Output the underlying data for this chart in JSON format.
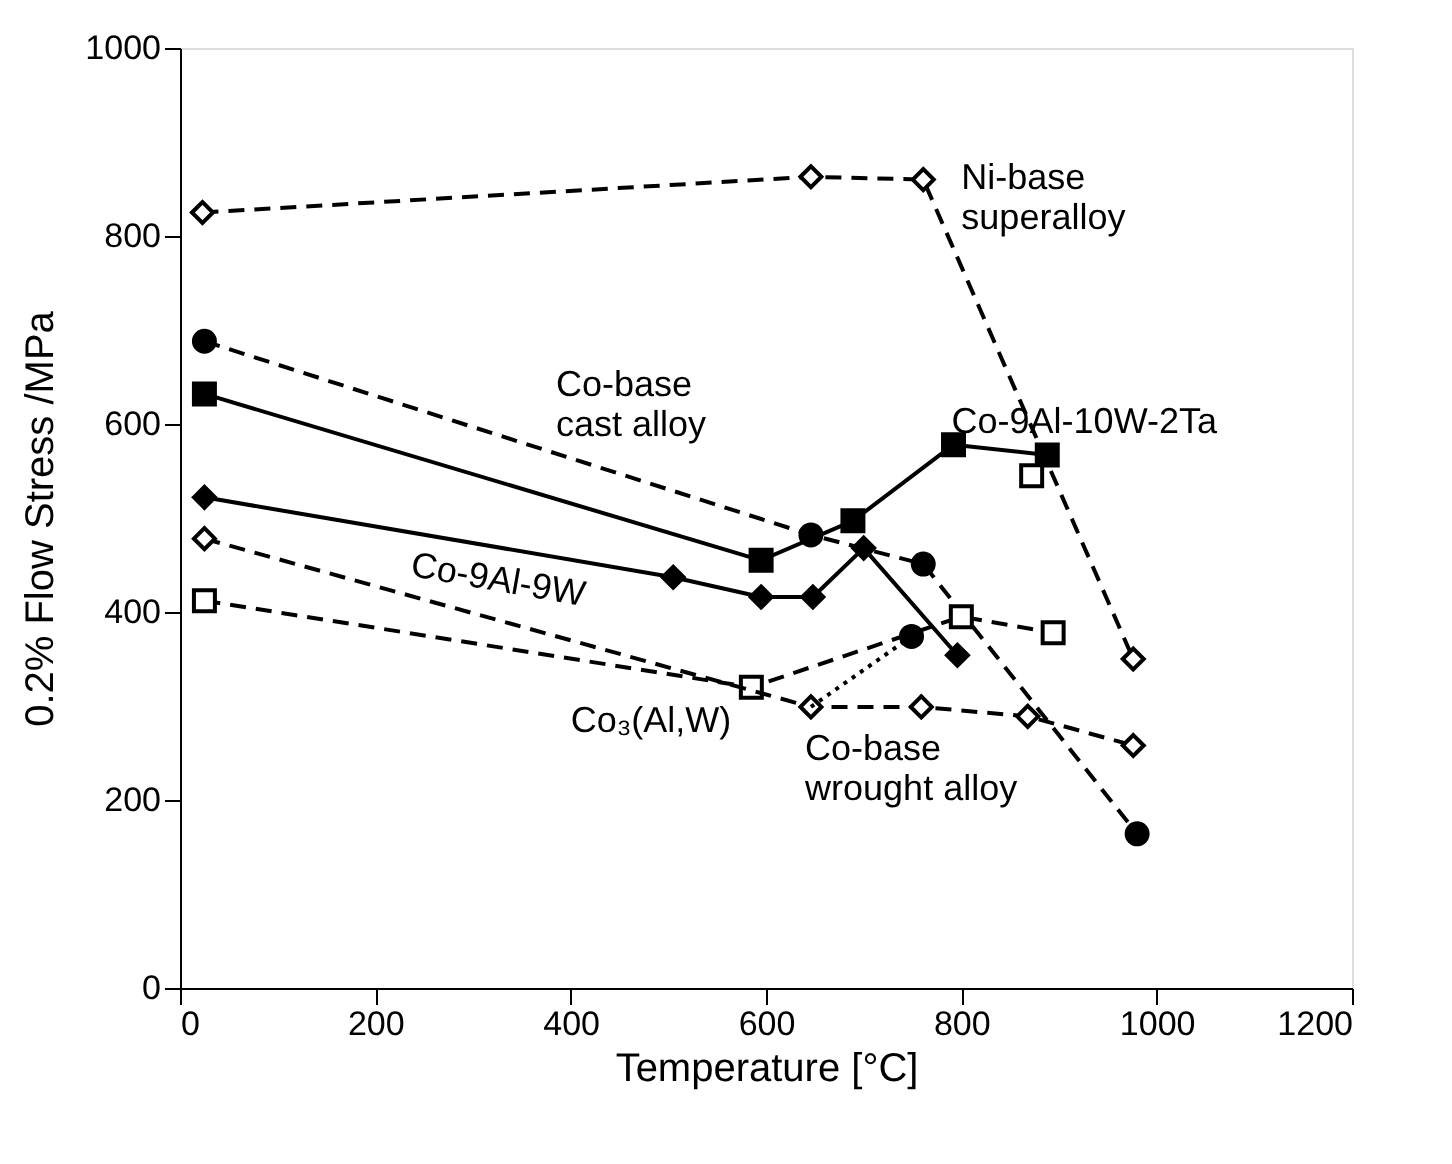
{
  "chart_data": {
    "type": "line",
    "xlabel": "Temperature [°C]",
    "ylabel": "0.2% Flow Stress /MPa",
    "xlim": [
      0,
      1200
    ],
    "xticks": [
      0,
      200,
      400,
      600,
      800,
      1000,
      1200
    ],
    "ylim": [
      0,
      1000
    ],
    "yticks": [
      0,
      200,
      400,
      600,
      800,
      1000
    ],
    "grid": false,
    "series": [
      {
        "name": "Ni-base superalloy",
        "color": "#000000",
        "colors": [
          "#ffffff",
          "#ffffff",
          "#ffffff",
          "#ffffff"
        ],
        "x": [
          23,
          646,
          761,
          976
        ],
        "values": [
          825,
          863,
          860,
          350
        ],
        "marker": "diamond",
        "line_style": "dashed"
      },
      {
        "name": "Co-base cast alloy",
        "color": "#000000",
        "x": [
          25,
          646,
          761,
          980
        ],
        "values": [
          688,
          482,
          451,
          164
        ],
        "marker": "circle",
        "line_style": "dashed"
      },
      {
        "name": "Co-9Al-10W-2Ta",
        "color": "#000000",
        "x": [
          25,
          595,
          689,
          792,
          888
        ],
        "values": [
          632,
          455,
          497,
          578,
          567
        ],
        "marker": "square",
        "line_style": "solid"
      },
      {
        "name": "Co-9Al-9W",
        "color": "#000000",
        "x": [
          25,
          505,
          595,
          648,
          700,
          796
        ],
        "values": [
          522,
          437,
          416,
          416,
          468,
          354
        ],
        "marker": "diamond",
        "line_style": "solid"
      },
      {
        "name": "Co₃(Al,W)",
        "color": "#000000",
        "colors": [
          "#ffffff",
          "#ffffff",
          "#ffffff",
          "#ffffff"
        ],
        "x": [
          25,
          585,
          800,
          894
        ],
        "values": [
          412,
          320,
          395,
          378
        ],
        "marker": "square",
        "line_style": "dashed"
      },
      {
        "name": "Co-base wrought alloy",
        "color": "#000000",
        "colors": [
          "#ffffff",
          "#ffffff",
          "#ffffff",
          "#ffffff",
          "#ffffff"
        ],
        "x": [
          25,
          646,
          759,
          868,
          976
        ],
        "values": [
          478,
          299,
          299,
          289,
          258
        ],
        "marker": "diamond",
        "line_style": "dashed"
      },
      {
        "type": "line",
        "color": "#000000",
        "x": [
          646,
          749
        ],
        "values": [
          299,
          374
        ],
        "marker": "none",
        "line_style": "dotted"
      },
      {
        "type": "scatter",
        "color": "#000000",
        "x": [
          749
        ],
        "values": [
          374
        ],
        "marker": "circle"
      },
      {
        "type": "scatter",
        "color": "#000000",
        "colors": [
          "#ffffff"
        ],
        "x": [
          872
        ],
        "values": [
          545
        ],
        "marker": "square"
      }
    ]
  }
}
